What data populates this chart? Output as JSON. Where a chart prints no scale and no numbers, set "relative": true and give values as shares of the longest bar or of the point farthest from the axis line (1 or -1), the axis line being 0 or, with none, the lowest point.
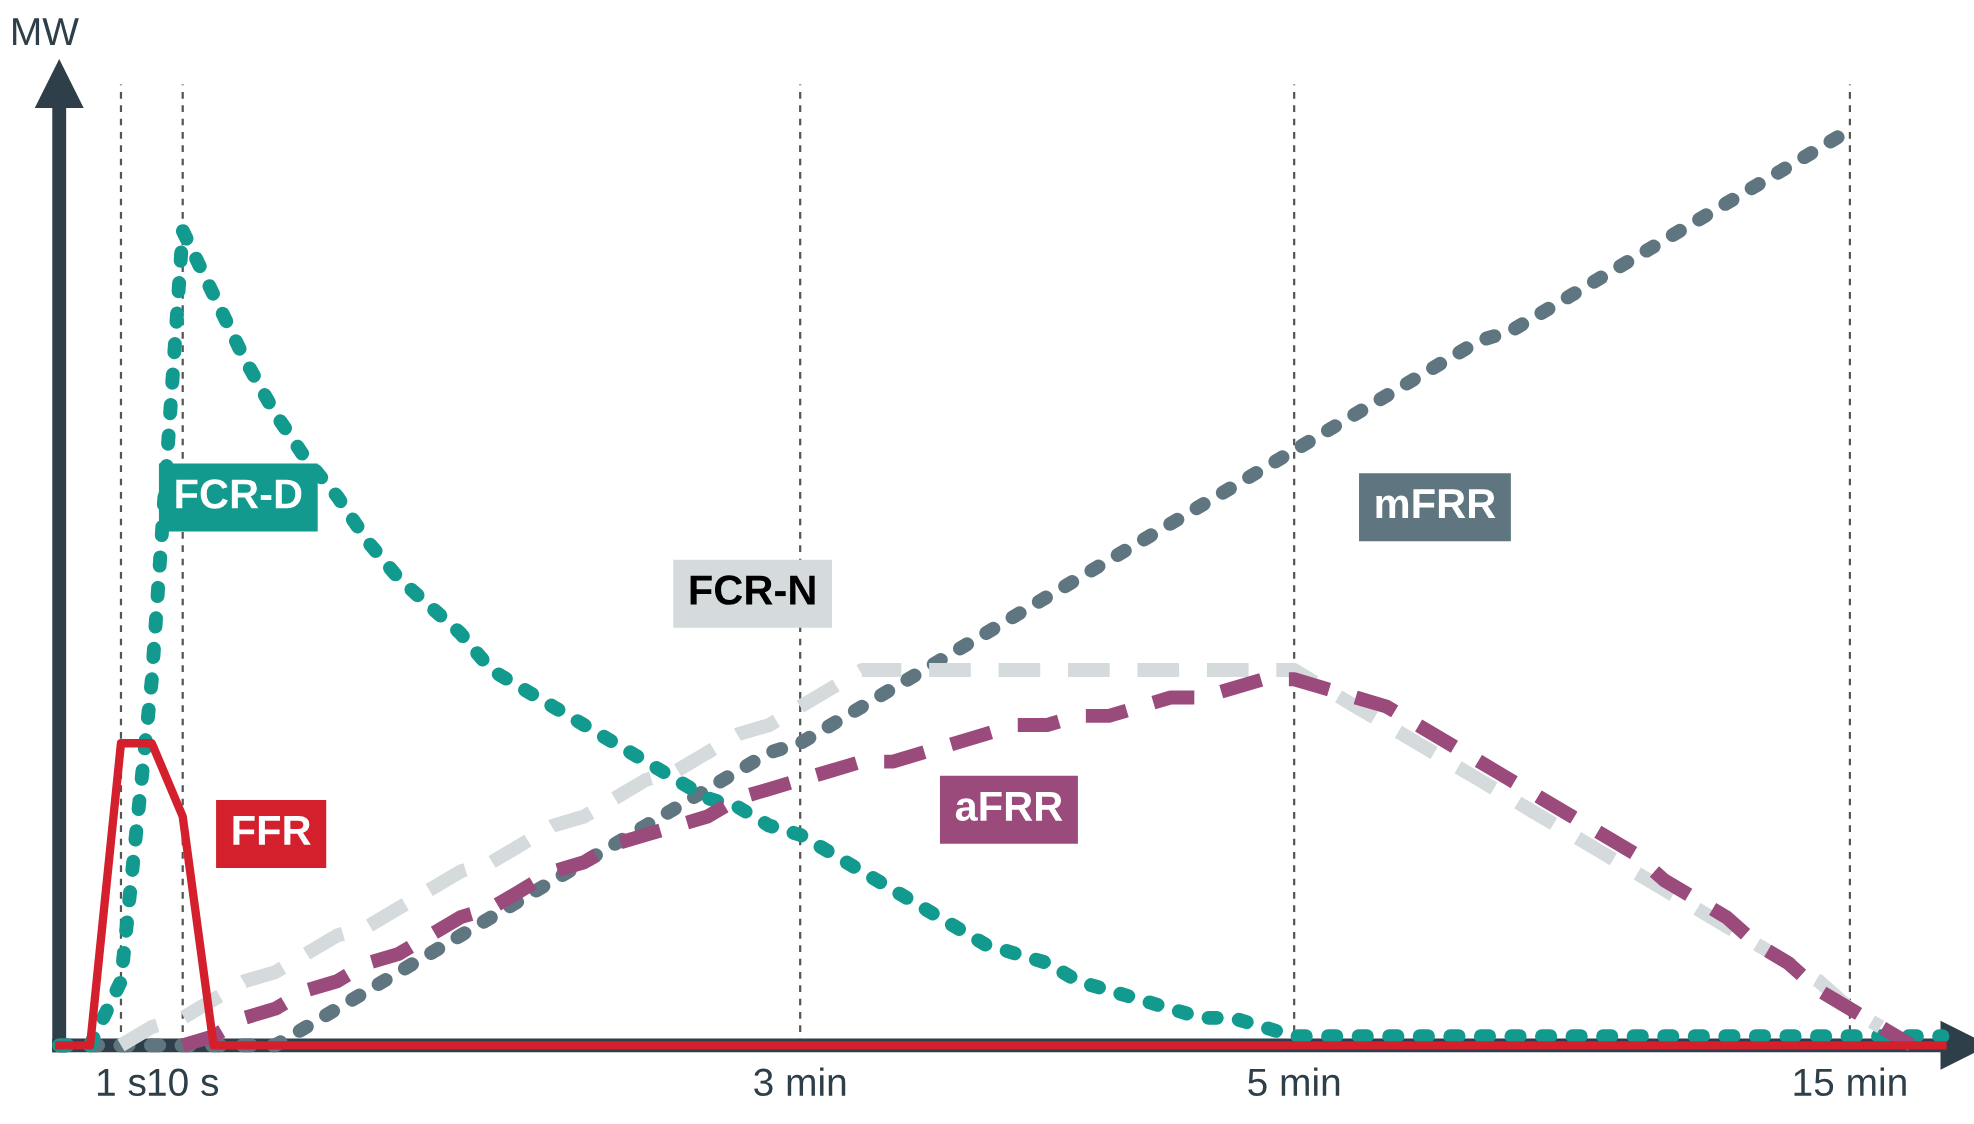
{
  "chart_data": {
    "type": "line",
    "ylabel": "MW",
    "relative": true,
    "tick_labels": "x",
    "grid": "x",
    "legend": false,
    "marker": "none",
    "categories": [
      null,
      null,
      "1 s",
      null,
      "10 s",
      null,
      null,
      null,
      null,
      null,
      null,
      null,
      null,
      null,
      null,
      null,
      null,
      null,
      null,
      null,
      null,
      null,
      null,
      null,
      "3 min",
      null,
      null,
      null,
      null,
      null,
      null,
      null,
      null,
      null,
      null,
      null,
      null,
      null,
      null,
      null,
      "5 min",
      null,
      null,
      null,
      null,
      null,
      null,
      null,
      null,
      null,
      null,
      null,
      null,
      null,
      null,
      null,
      null,
      null,
      "15 min",
      null,
      null,
      null
    ],
    "series": [
      {
        "name": "mFRR",
        "color": "#5f7680",
        "line_style": "dotted",
        "values": [
          0,
          0,
          0,
          0,
          0,
          0,
          0,
          0,
          0.02,
          0.04,
          0.06,
          0.08,
          0.1,
          0.12,
          0.14,
          0.16,
          0.18,
          0.2,
          0.22,
          0.24,
          0.26,
          0.28,
          0.3,
          0.32,
          0.33,
          0.35,
          0.37,
          0.39,
          0.41,
          0.43,
          0.45,
          0.47,
          0.49,
          0.51,
          0.53,
          0.55,
          0.57,
          0.59,
          0.61,
          0.63,
          0.65,
          0.67,
          0.69,
          0.71,
          0.73,
          0.75,
          0.77,
          0.78,
          0.8,
          0.82,
          0.84,
          0.86,
          0.88,
          0.9,
          0.92,
          0.94,
          0.96,
          0.98,
          1.0,
          null,
          null,
          null
        ]
      },
      {
        "name": "FCR-D",
        "color": "#129a8e",
        "line_style": "dotted",
        "values": [
          0,
          0,
          0.07,
          0.4,
          0.89,
          0.82,
          0.75,
          0.69,
          0.64,
          0.6,
          0.55,
          0.51,
          0.48,
          0.45,
          0.41,
          0.39,
          0.37,
          0.35,
          0.33,
          0.31,
          0.29,
          0.27,
          0.26,
          0.24,
          0.23,
          0.21,
          0.19,
          0.17,
          0.15,
          0.13,
          0.11,
          0.1,
          0.09,
          0.07,
          0.06,
          0.05,
          0.04,
          0.03,
          0.03,
          0.02,
          0.01,
          0.01,
          0.01,
          0.01,
          0.01,
          0.01,
          0.01,
          0.01,
          0.01,
          0.01,
          0.01,
          0.01,
          0.01,
          0.01,
          0.01,
          0.01,
          0.01,
          0.01,
          0.01,
          0.01,
          0.01,
          0.01
        ]
      },
      {
        "name": "FCR-N",
        "color": "#d5dadd",
        "line_style": "dashed",
        "values": [
          null,
          null,
          0,
          0.02,
          0.03,
          0.05,
          0.07,
          0.08,
          0.1,
          0.12,
          0.13,
          0.15,
          0.17,
          0.19,
          0.2,
          0.22,
          0.24,
          0.25,
          0.27,
          0.29,
          0.3,
          0.32,
          0.34,
          0.35,
          0.37,
          0.39,
          0.41,
          0.41,
          0.41,
          0.41,
          0.41,
          0.41,
          0.41,
          0.41,
          0.41,
          0.41,
          0.41,
          0.41,
          0.41,
          0.41,
          0.41,
          0.39,
          0.37,
          0.35,
          0.33,
          0.31,
          0.29,
          0.27,
          0.25,
          0.23,
          0.21,
          0.19,
          0.17,
          0.15,
          0.13,
          0.11,
          0.09,
          0.07,
          0.04,
          0.02,
          null,
          null
        ]
      },
      {
        "name": "aFRR",
        "color": "#9b4a7c",
        "line_style": "dashed",
        "values": [
          null,
          null,
          null,
          null,
          0,
          0.01,
          0.03,
          0.04,
          0.06,
          0.07,
          0.09,
          0.1,
          0.12,
          0.14,
          0.15,
          0.17,
          0.19,
          0.2,
          0.22,
          0.23,
          0.24,
          0.25,
          0.27,
          0.28,
          0.29,
          0.3,
          0.31,
          0.31,
          0.32,
          0.33,
          0.34,
          0.35,
          0.35,
          0.36,
          0.36,
          0.37,
          0.38,
          0.38,
          0.39,
          0.4,
          0.4,
          0.39,
          0.38,
          0.37,
          0.35,
          0.33,
          0.31,
          0.29,
          0.27,
          0.25,
          0.23,
          0.21,
          0.18,
          0.16,
          0.14,
          0.11,
          0.09,
          0.06,
          0.04,
          0.02,
          0,
          null
        ]
      },
      {
        "name": "FFR",
        "color": "#d4202c",
        "line_style": "solid",
        "values": [
          0,
          0,
          0.33,
          0.33,
          0.25,
          0,
          0,
          0,
          0,
          0,
          0,
          0,
          0,
          0,
          0,
          0,
          0,
          0,
          0,
          0,
          0,
          0,
          0,
          0,
          0,
          0,
          0,
          0,
          0,
          0,
          0,
          0,
          0,
          0,
          0,
          0,
          0,
          0,
          0,
          0,
          0,
          0,
          0,
          0,
          0,
          0,
          0,
          0,
          0,
          0,
          0,
          0,
          0,
          0,
          0,
          0,
          0,
          0,
          0,
          0,
          0,
          0
        ]
      }
    ]
  }
}
